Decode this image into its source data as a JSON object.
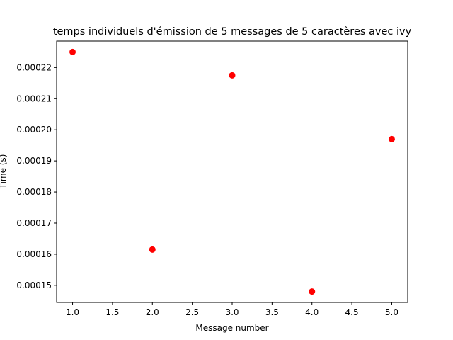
{
  "chart_data": {
    "type": "scatter",
    "title": "temps individuels d'émission de 5 messages de 5 caractères avec ivy",
    "xlabel": "Message number",
    "ylabel": "Time (s)",
    "x": [
      1,
      2,
      3,
      4,
      5
    ],
    "y": [
      0.000225,
      0.0001615,
      0.0002175,
      0.000148,
      0.000197
    ],
    "xlim": [
      0.8,
      5.2
    ],
    "ylim": [
      0.0001445,
      0.0002285
    ],
    "xticks": [
      1.0,
      1.5,
      2.0,
      2.5,
      3.0,
      3.5,
      4.0,
      4.5,
      5.0
    ],
    "xtick_labels": [
      "1.0",
      "1.5",
      "2.0",
      "2.5",
      "3.0",
      "3.5",
      "4.0",
      "4.5",
      "5.0"
    ],
    "yticks": [
      0.00015,
      0.00016,
      0.00017,
      0.00018,
      0.00019,
      0.0002,
      0.00021,
      0.00022
    ],
    "ytick_labels": [
      "0.00015",
      "0.00016",
      "0.00017",
      "0.00018",
      "0.00019",
      "0.00020",
      "0.00021",
      "0.00022"
    ],
    "grid": false,
    "marker_color": "#ff0000"
  }
}
